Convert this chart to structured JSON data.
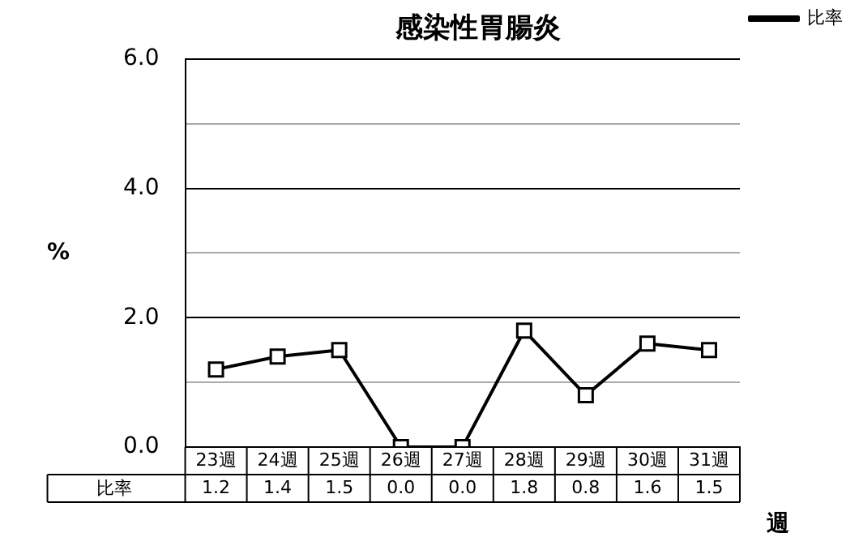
{
  "chart_data": {
    "type": "line",
    "title": "感染性胃腸炎",
    "ylabel": "%",
    "xlabel": "週",
    "categories": [
      "23週",
      "24週",
      "25週",
      "26週",
      "27週",
      "28週",
      "29週",
      "30週",
      "31週"
    ],
    "series": [
      {
        "name": "比率",
        "color": "#000000",
        "values": [
          1.2,
          1.4,
          1.5,
          0.0,
          0.0,
          1.8,
          0.8,
          1.6,
          1.5
        ],
        "value_labels": [
          "1.2",
          "1.4",
          "1.5",
          "0.0",
          "0.0",
          "1.8",
          "0.8",
          "1.6",
          "1.5"
        ]
      }
    ],
    "ylim": [
      0,
      6
    ],
    "yticks": [
      {
        "value": 0,
        "label": "0.0"
      },
      {
        "value": 1,
        "label": null
      },
      {
        "value": 2,
        "label": "2.0"
      },
      {
        "value": 3,
        "label": null
      },
      {
        "value": 4,
        "label": "4.0"
      },
      {
        "value": 5,
        "label": null
      },
      {
        "value": 6,
        "label": "6.0"
      }
    ],
    "grid": "y",
    "legend": "top right",
    "marker": "square",
    "line_style": "solid"
  }
}
